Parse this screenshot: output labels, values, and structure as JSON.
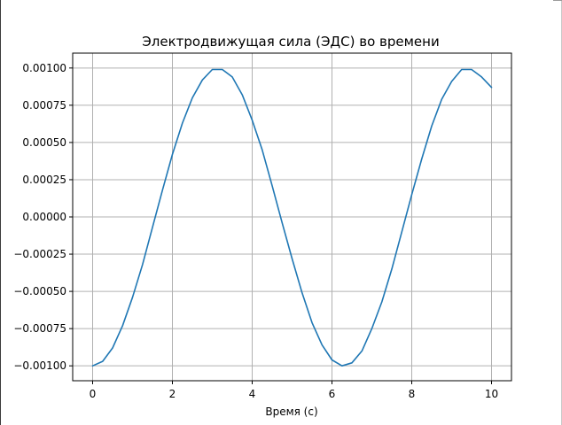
{
  "chart_data": {
    "type": "line",
    "title": "Электродвижущая сила (ЭДС) во времени",
    "xlabel": "Время (с)",
    "ylabel": "",
    "xlim": [
      -0.5,
      10.5
    ],
    "ylim": [
      -0.0011,
      0.0011
    ],
    "grid": true,
    "x_ticks": [
      0,
      2,
      4,
      6,
      8,
      10
    ],
    "x_tick_labels": [
      "0",
      "2",
      "4",
      "6",
      "8",
      "10"
    ],
    "y_ticks": [
      0.001,
      0.00075,
      0.0005,
      0.00025,
      0.0,
      -0.00025,
      -0.0005,
      -0.00075,
      -0.001
    ],
    "y_tick_labels": [
      "0.00100",
      "0.00075",
      "0.00050",
      "0.00025",
      "0.00000",
      "−0.00025",
      "−0.00050",
      "−0.00075",
      "−0.00100"
    ],
    "series": [
      {
        "color": "#1f77b4",
        "x": [
          0,
          0.25,
          0.5,
          0.75,
          1,
          1.25,
          1.5,
          1.75,
          2,
          2.25,
          2.5,
          2.75,
          3,
          3.25,
          3.5,
          3.75,
          4,
          4.25,
          4.5,
          4.75,
          5,
          5.25,
          5.5,
          5.75,
          6,
          6.25,
          6.5,
          6.75,
          7,
          7.25,
          7.5,
          7.75,
          8,
          8.25,
          8.5,
          8.75,
          9,
          9.25,
          9.5,
          9.75,
          10
        ],
        "y": [
          -0.001,
          -0.00097,
          -0.00088,
          -0.00073,
          -0.00054,
          -0.00032,
          -7e-05,
          0.00018,
          0.00042,
          0.00063,
          0.0008,
          0.00092,
          0.00099,
          0.00099,
          0.00094,
          0.00082,
          0.00065,
          0.00045,
          0.00021,
          -4e-05,
          -0.00028,
          -0.00051,
          -0.00071,
          -0.00086,
          -0.00096,
          -0.001,
          -0.00098,
          -0.0009,
          -0.00075,
          -0.00057,
          -0.00035,
          -0.0001,
          0.00015,
          0.00039,
          0.00061,
          0.00079,
          0.00091,
          0.00099,
          0.00099,
          0.00094,
          0.00087
        ]
      }
    ]
  }
}
